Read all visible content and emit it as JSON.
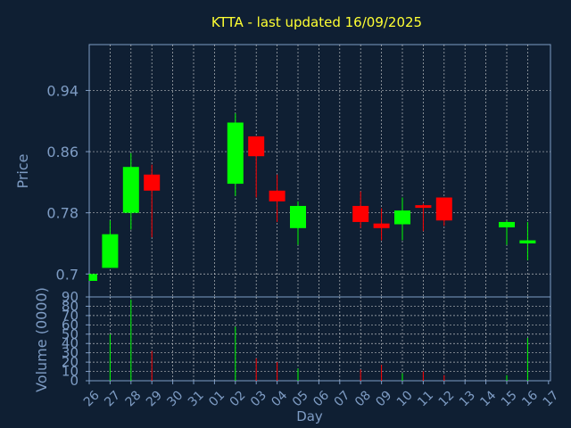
{
  "chart_data": {
    "type": "candlestick",
    "title": "KTTA - last updated 16/09/2025",
    "xlabel": "Day",
    "categories": [
      "26",
      "27",
      "28",
      "29",
      "30",
      "31",
      "01",
      "02",
      "03",
      "04",
      "05",
      "06",
      "07",
      "08",
      "09",
      "10",
      "11",
      "12",
      "13",
      "14",
      "15",
      "16",
      "17"
    ],
    "price": {
      "ylabel": "Price",
      "ylim": [
        0.67,
        1.0
      ],
      "yticks": [
        0.7,
        0.78,
        0.86,
        0.94
      ],
      "ytick_labels": [
        "0.7",
        "0.78",
        "0.86",
        "0.94"
      ],
      "candles": [
        {
          "day": "26",
          "open": 0.691,
          "close": 0.7,
          "high": 0.7,
          "low": 0.691
        },
        {
          "day": "27",
          "open": 0.708,
          "close": 0.752,
          "high": 0.77,
          "low": 0.708
        },
        {
          "day": "28",
          "open": 0.78,
          "close": 0.84,
          "high": 0.858,
          "low": 0.758
        },
        {
          "day": "29",
          "open": 0.83,
          "close": 0.809,
          "high": 0.843,
          "low": 0.748
        },
        {
          "day": "02",
          "open": 0.818,
          "close": 0.898,
          "high": 0.91,
          "low": 0.802
        },
        {
          "day": "03",
          "open": 0.88,
          "close": 0.854,
          "high": 0.88,
          "low": 0.8
        },
        {
          "day": "04",
          "open": 0.809,
          "close": 0.795,
          "high": 0.83,
          "low": 0.768
        },
        {
          "day": "05",
          "open": 0.76,
          "close": 0.789,
          "high": 0.795,
          "low": 0.738
        },
        {
          "day": "08",
          "open": 0.789,
          "close": 0.768,
          "high": 0.808,
          "low": 0.76
        },
        {
          "day": "09",
          "open": 0.766,
          "close": 0.76,
          "high": 0.786,
          "low": 0.744
        },
        {
          "day": "10",
          "open": 0.765,
          "close": 0.783,
          "high": 0.8,
          "low": 0.744
        },
        {
          "day": "11",
          "open": 0.79,
          "close": 0.788,
          "high": 0.792,
          "low": 0.756
        },
        {
          "day": "12",
          "open": 0.8,
          "close": 0.77,
          "high": 0.8,
          "low": 0.763
        },
        {
          "day": "15",
          "open": 0.761,
          "close": 0.768,
          "high": 0.77,
          "low": 0.738
        },
        {
          "day": "16",
          "open": 0.74,
          "close": 0.744,
          "high": 0.768,
          "low": 0.718
        }
      ]
    },
    "volume": {
      "ylabel": "Volume (0000)",
      "ylim": [
        0,
        90
      ],
      "yticks": [
        0,
        10,
        20,
        30,
        40,
        50,
        60,
        70,
        80,
        90
      ],
      "ytick_labels": [
        "0",
        "10",
        "20",
        "30",
        "40",
        "50",
        "60",
        "70",
        "80",
        "90"
      ],
      "bars": [
        {
          "day": "27",
          "value": 50,
          "direction": "up"
        },
        {
          "day": "28",
          "value": 87,
          "direction": "up"
        },
        {
          "day": "29",
          "value": 32,
          "direction": "down"
        },
        {
          "day": "02",
          "value": 58,
          "direction": "up"
        },
        {
          "day": "03",
          "value": 24,
          "direction": "down"
        },
        {
          "day": "04",
          "value": 20,
          "direction": "down"
        },
        {
          "day": "05",
          "value": 13,
          "direction": "up"
        },
        {
          "day": "08",
          "value": 12,
          "direction": "down"
        },
        {
          "day": "09",
          "value": 17,
          "direction": "down"
        },
        {
          "day": "10",
          "value": 8,
          "direction": "up"
        },
        {
          "day": "11",
          "value": 10,
          "direction": "down"
        },
        {
          "day": "12",
          "value": 6,
          "direction": "down"
        },
        {
          "day": "15",
          "value": 6,
          "direction": "up"
        },
        {
          "day": "16",
          "value": 46,
          "direction": "up"
        }
      ]
    },
    "grid": true,
    "colors": {
      "background": "#0f1f33",
      "axis": "#7e9cc4",
      "grid": "#e0e0e0",
      "up": "#00ff00",
      "down": "#ff0000",
      "title": "#ffff33"
    }
  }
}
